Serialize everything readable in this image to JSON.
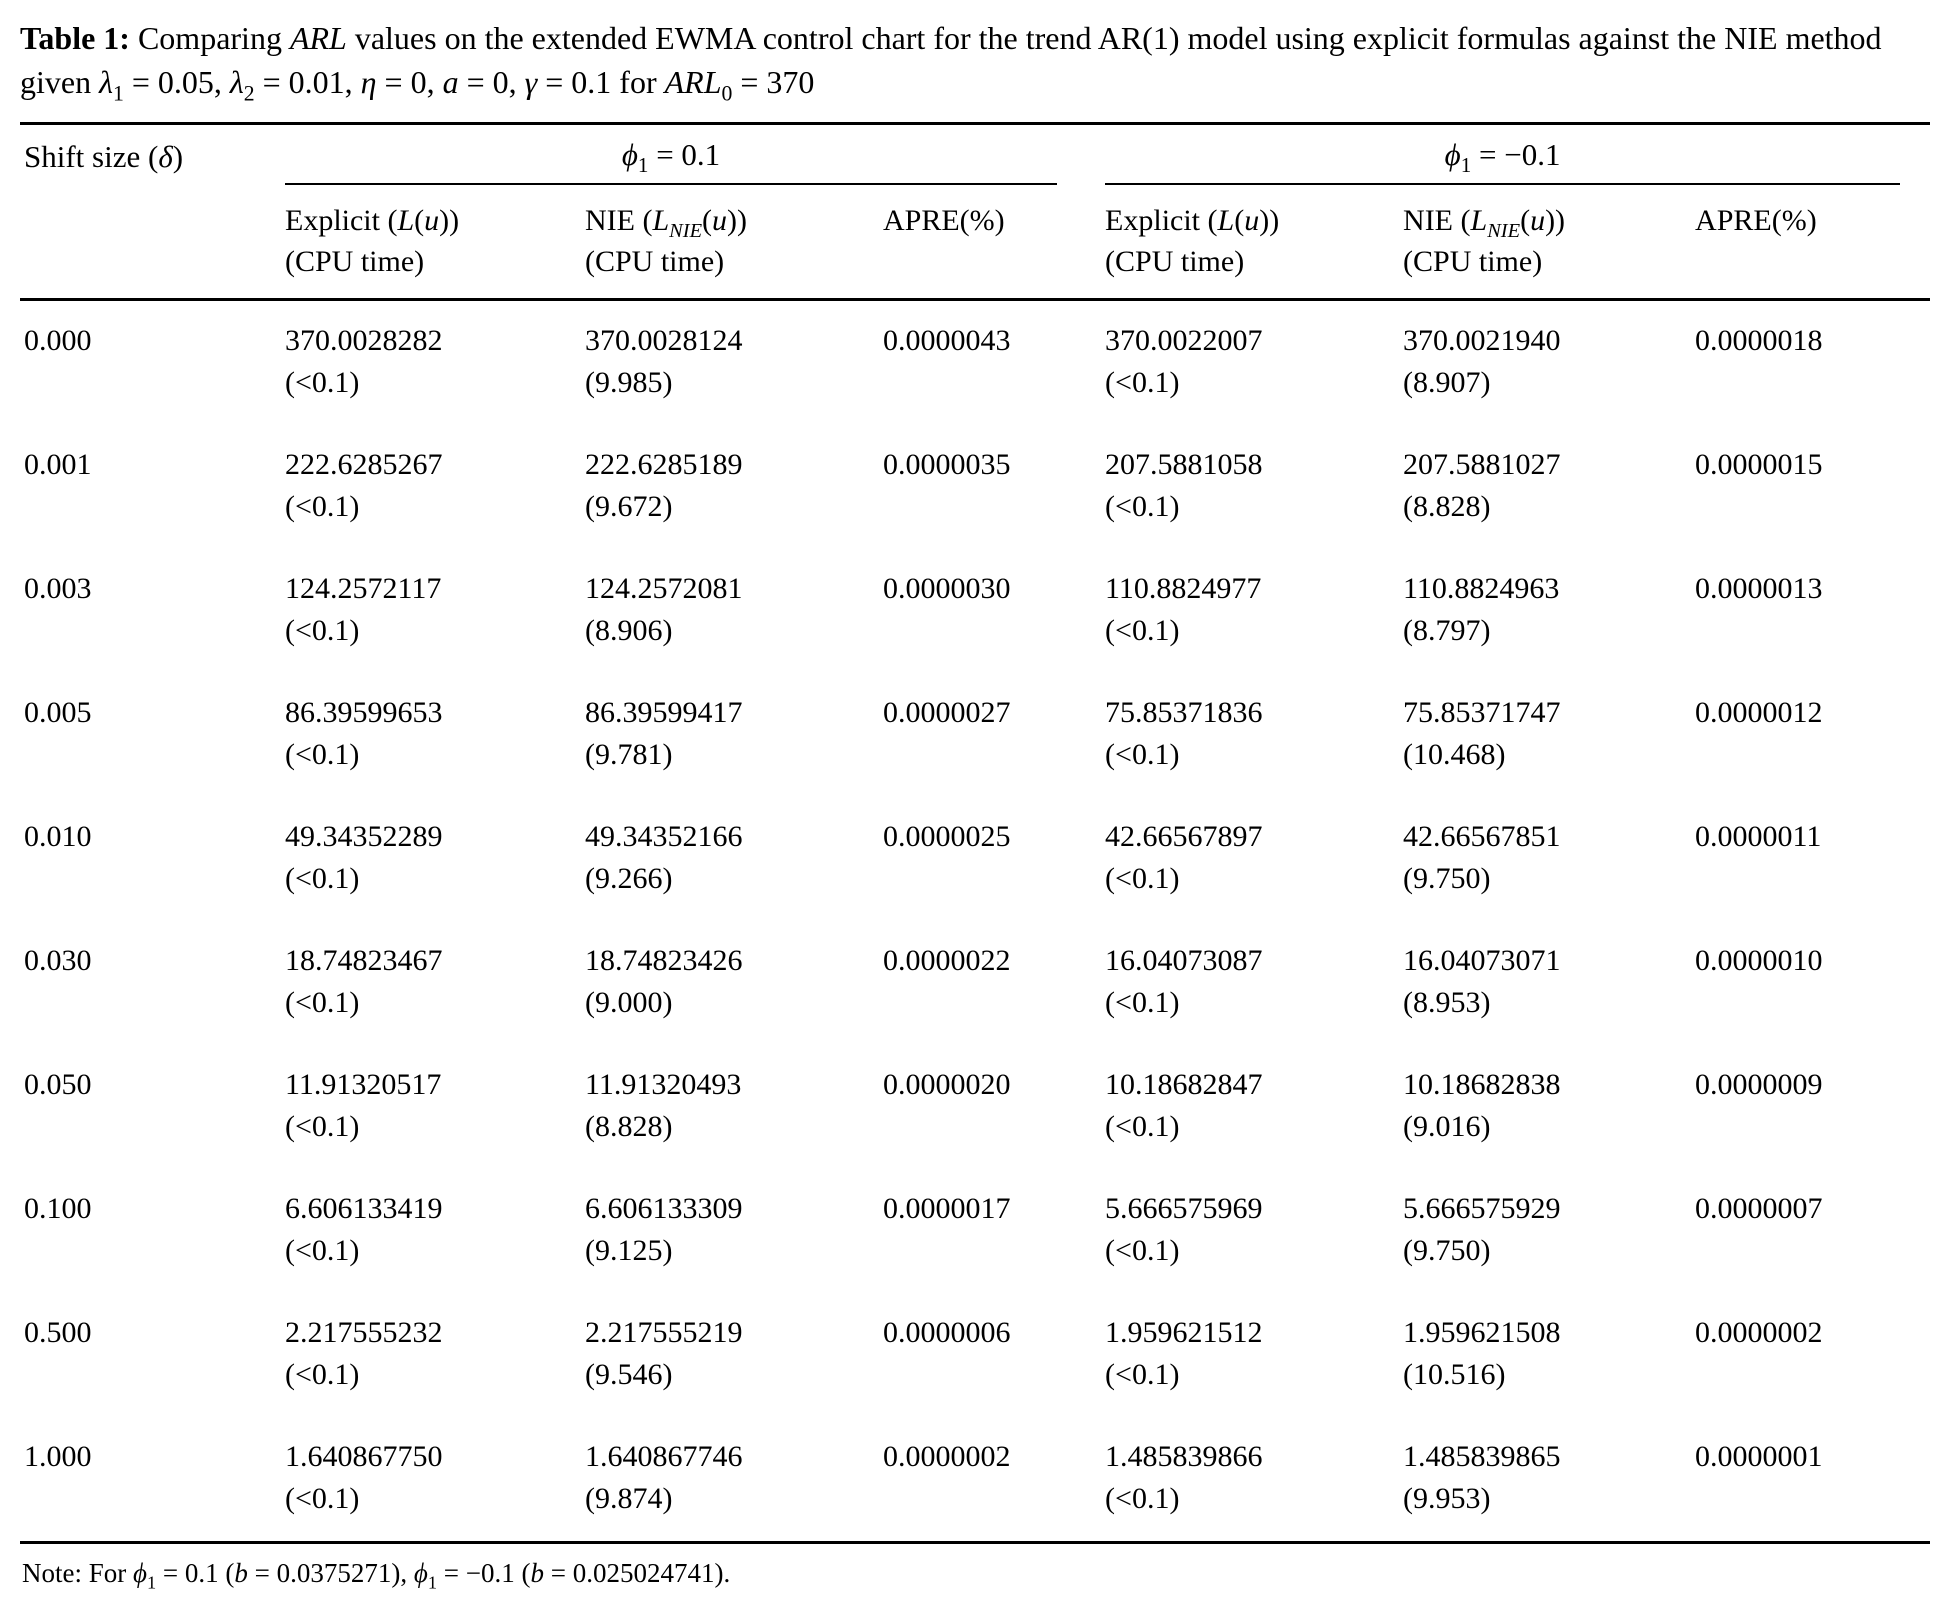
{
  "page": {
    "background": "#ffffff",
    "text_color": "#000000",
    "rule_color": "#000000"
  },
  "title": {
    "label": "Table 1:",
    "segments": [
      {
        "t": " Comparing ",
        "s": ""
      },
      {
        "t": "ARL",
        "s": "i"
      },
      {
        "t": " values on the extended EWMA control chart for the trend AR(1) model using explicit formulas against the NIE method given ",
        "s": ""
      },
      {
        "t": "λ",
        "s": "i"
      },
      {
        "t": "1",
        "s": "sub"
      },
      {
        "t": " = 0.05, ",
        "s": ""
      },
      {
        "t": "λ",
        "s": "i"
      },
      {
        "t": "2",
        "s": "sub"
      },
      {
        "t": " = 0.01, ",
        "s": ""
      },
      {
        "t": "η",
        "s": "i"
      },
      {
        "t": " = 0, ",
        "s": ""
      },
      {
        "t": "a",
        "s": "i"
      },
      {
        "t": " = 0, ",
        "s": ""
      },
      {
        "t": "γ",
        "s": "i"
      },
      {
        "t": " = 0.1 for ",
        "s": ""
      },
      {
        "t": "ARL",
        "s": "i"
      },
      {
        "t": "0",
        "s": "sub"
      },
      {
        "t": " = 370",
        "s": ""
      }
    ]
  },
  "table": {
    "header": {
      "shift_size": {
        "segments": [
          {
            "t": "Shift size (",
            "s": ""
          },
          {
            "t": "δ",
            "s": "i"
          },
          {
            "t": ")",
            "s": ""
          }
        ]
      },
      "groups": [
        {
          "segments": [
            {
              "t": "ϕ",
              "s": "i"
            },
            {
              "t": "1",
              "s": "sub"
            },
            {
              "t": " = 0.1",
              "s": ""
            }
          ]
        },
        {
          "segments": [
            {
              "t": "ϕ",
              "s": "i"
            },
            {
              "t": "1",
              "s": "sub"
            },
            {
              "t": " = −0.1",
              "s": ""
            }
          ]
        }
      ],
      "columns": [
        {
          "line1": [
            {
              "t": "Explicit (",
              "s": ""
            },
            {
              "t": "L",
              "s": "i"
            },
            {
              "t": "(",
              "s": ""
            },
            {
              "t": "u",
              "s": "i"
            },
            {
              "t": "))",
              "s": ""
            }
          ],
          "line2": "(CPU time)"
        },
        {
          "line1": [
            {
              "t": "NIE (",
              "s": ""
            },
            {
              "t": "L",
              "s": "i"
            },
            {
              "t": "NIE",
              "s": "isub"
            },
            {
              "t": "(",
              "s": ""
            },
            {
              "t": "u",
              "s": "i"
            },
            {
              "t": "))",
              "s": ""
            }
          ],
          "line2": "(CPU time)"
        },
        {
          "line1": [
            {
              "t": "APRE(%)",
              "s": ""
            }
          ],
          "line2": ""
        }
      ]
    },
    "cell_names": [
      "explicit-arl-cell-phi-positive",
      "nie-arl-cell-phi-positive",
      "apre-cell-phi-positive",
      "explicit-arl-cell-phi-negative",
      "nie-arl-cell-phi-negative",
      "apre-cell-phi-negative"
    ],
    "rows": [
      {
        "shift": "0.000",
        "cells": [
          {
            "value": "370.0028282",
            "cpu": "(<0.1)"
          },
          {
            "value": "370.0028124",
            "cpu": "(9.985)"
          },
          {
            "value": "0.0000043",
            "cpu": ""
          },
          {
            "value": "370.0022007",
            "cpu": "(<0.1)"
          },
          {
            "value": "370.0021940",
            "cpu": "(8.907)"
          },
          {
            "value": "0.0000018",
            "cpu": ""
          }
        ]
      },
      {
        "shift": "0.001",
        "cells": [
          {
            "value": "222.6285267",
            "cpu": "(<0.1)"
          },
          {
            "value": "222.6285189",
            "cpu": "(9.672)"
          },
          {
            "value": "0.0000035",
            "cpu": ""
          },
          {
            "value": "207.5881058",
            "cpu": "(<0.1)"
          },
          {
            "value": "207.5881027",
            "cpu": "(8.828)"
          },
          {
            "value": "0.0000015",
            "cpu": ""
          }
        ]
      },
      {
        "shift": "0.003",
        "cells": [
          {
            "value": "124.2572117",
            "cpu": "(<0.1)"
          },
          {
            "value": "124.2572081",
            "cpu": "(8.906)"
          },
          {
            "value": "0.0000030",
            "cpu": ""
          },
          {
            "value": "110.8824977",
            "cpu": "(<0.1)"
          },
          {
            "value": "110.8824963",
            "cpu": "(8.797)"
          },
          {
            "value": "0.0000013",
            "cpu": ""
          }
        ]
      },
      {
        "shift": "0.005",
        "cells": [
          {
            "value": "86.39599653",
            "cpu": "(<0.1)"
          },
          {
            "value": "86.39599417",
            "cpu": "(9.781)"
          },
          {
            "value": "0.0000027",
            "cpu": ""
          },
          {
            "value": "75.85371836",
            "cpu": "(<0.1)"
          },
          {
            "value": "75.85371747",
            "cpu": "(10.468)"
          },
          {
            "value": "0.0000012",
            "cpu": ""
          }
        ]
      },
      {
        "shift": "0.010",
        "cells": [
          {
            "value": "49.34352289",
            "cpu": "(<0.1)"
          },
          {
            "value": "49.34352166",
            "cpu": "(9.266)"
          },
          {
            "value": "0.0000025",
            "cpu": ""
          },
          {
            "value": "42.66567897",
            "cpu": "(<0.1)"
          },
          {
            "value": "42.66567851",
            "cpu": "(9.750)"
          },
          {
            "value": "0.0000011",
            "cpu": ""
          }
        ]
      },
      {
        "shift": "0.030",
        "cells": [
          {
            "value": "18.74823467",
            "cpu": "(<0.1)"
          },
          {
            "value": "18.74823426",
            "cpu": "(9.000)"
          },
          {
            "value": "0.0000022",
            "cpu": ""
          },
          {
            "value": "16.04073087",
            "cpu": "(<0.1)"
          },
          {
            "value": "16.04073071",
            "cpu": "(8.953)"
          },
          {
            "value": "0.0000010",
            "cpu": ""
          }
        ]
      },
      {
        "shift": "0.050",
        "cells": [
          {
            "value": "11.91320517",
            "cpu": "(<0.1)"
          },
          {
            "value": "11.91320493",
            "cpu": "(8.828)"
          },
          {
            "value": "0.0000020",
            "cpu": ""
          },
          {
            "value": "10.18682847",
            "cpu": "(<0.1)"
          },
          {
            "value": "10.18682838",
            "cpu": "(9.016)"
          },
          {
            "value": "0.0000009",
            "cpu": ""
          }
        ]
      },
      {
        "shift": "0.100",
        "cells": [
          {
            "value": "6.606133419",
            "cpu": "(<0.1)"
          },
          {
            "value": "6.606133309",
            "cpu": "(9.125)"
          },
          {
            "value": "0.0000017",
            "cpu": ""
          },
          {
            "value": "5.666575969",
            "cpu": "(<0.1)"
          },
          {
            "value": "5.666575929",
            "cpu": "(9.750)"
          },
          {
            "value": "0.0000007",
            "cpu": ""
          }
        ]
      },
      {
        "shift": "0.500",
        "cells": [
          {
            "value": "2.217555232",
            "cpu": "(<0.1)"
          },
          {
            "value": "2.217555219",
            "cpu": "(9.546)"
          },
          {
            "value": "0.0000006",
            "cpu": ""
          },
          {
            "value": "1.959621512",
            "cpu": "(<0.1)"
          },
          {
            "value": "1.959621508",
            "cpu": "(10.516)"
          },
          {
            "value": "0.0000002",
            "cpu": ""
          }
        ]
      },
      {
        "shift": "1.000",
        "cells": [
          {
            "value": "1.640867750",
            "cpu": "(<0.1)"
          },
          {
            "value": "1.640867746",
            "cpu": "(9.874)"
          },
          {
            "value": "0.0000002",
            "cpu": ""
          },
          {
            "value": "1.485839866",
            "cpu": "(<0.1)"
          },
          {
            "value": "1.485839865",
            "cpu": "(9.953)"
          },
          {
            "value": "0.0000001",
            "cpu": ""
          }
        ]
      }
    ]
  },
  "note": {
    "segments": [
      {
        "t": "Note: For ",
        "s": ""
      },
      {
        "t": "ϕ",
        "s": "i"
      },
      {
        "t": "1",
        "s": "sub"
      },
      {
        "t": " = 0.1 (",
        "s": ""
      },
      {
        "t": "b",
        "s": "i"
      },
      {
        "t": " = 0.0375271), ",
        "s": ""
      },
      {
        "t": "ϕ",
        "s": "i"
      },
      {
        "t": "1",
        "s": "sub"
      },
      {
        "t": " = −0.1 (",
        "s": ""
      },
      {
        "t": "b",
        "s": "i"
      },
      {
        "t": " = 0.025024741).",
        "s": ""
      }
    ]
  }
}
